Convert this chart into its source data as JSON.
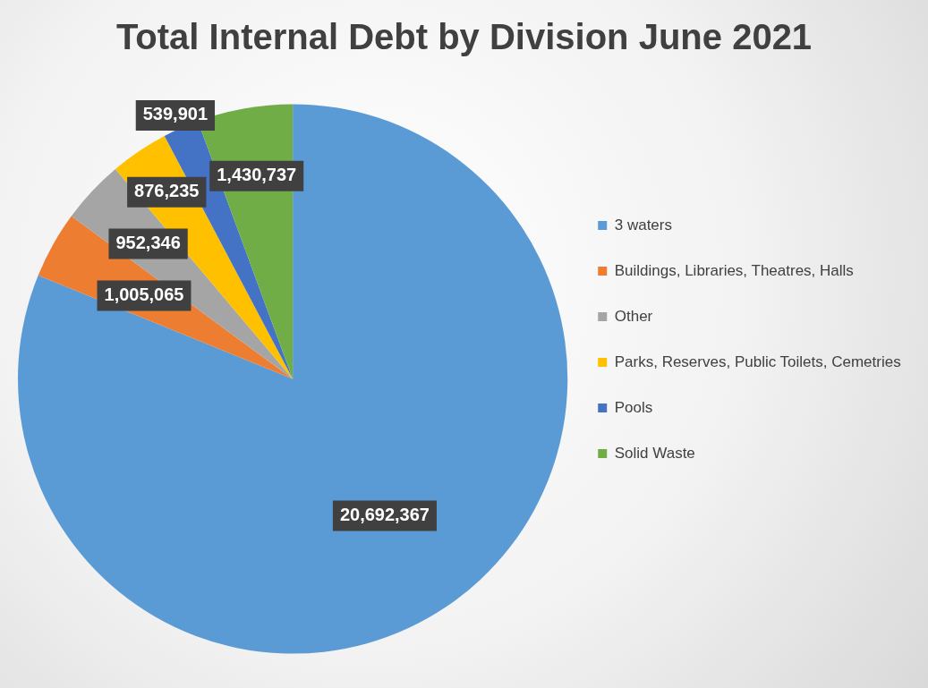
{
  "chart_data": {
    "type": "pie",
    "title": "Total Internal Debt by Division June 2021",
    "categories": [
      "3 waters",
      "Buildings, Libraries, Theatres, Halls",
      "Other",
      "Parks, Reserves, Public Toilets, Cemetries",
      "Pools",
      "Solid Waste"
    ],
    "values": [
      20692367,
      1005065,
      952346,
      876235,
      539901,
      1430737
    ],
    "colors": [
      "#5b9bd5",
      "#ed7d31",
      "#a5a5a5",
      "#ffc000",
      "#4472c4",
      "#70ad47"
    ],
    "value_labels": [
      "20,692,367",
      "1,005,065",
      "952,346",
      "876,235",
      "539,901",
      "1,430,737"
    ],
    "legend": "right"
  }
}
